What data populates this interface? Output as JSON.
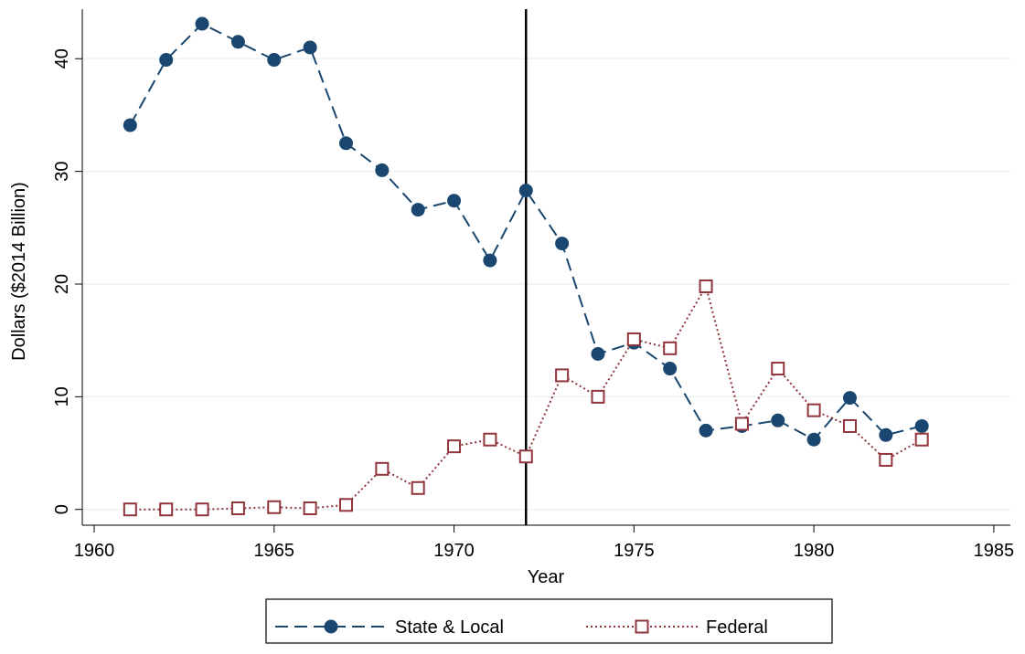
{
  "chart_data": {
    "type": "line",
    "x": [
      1961,
      1962,
      1963,
      1964,
      1965,
      1966,
      1967,
      1968,
      1969,
      1970,
      1971,
      1972,
      1973,
      1974,
      1975,
      1976,
      1977,
      1978,
      1979,
      1980,
      1981,
      1982,
      1983
    ],
    "series": [
      {
        "name": "State & Local",
        "color": "#1a476f",
        "marker": "circle",
        "dash": "dashed",
        "values": [
          34.1,
          39.9,
          43.1,
          41.5,
          39.9,
          41.0,
          32.5,
          30.1,
          26.6,
          27.4,
          22.1,
          28.3,
          23.6,
          13.8,
          14.8,
          12.5,
          7.0,
          7.4,
          7.9,
          6.2,
          9.9,
          6.6,
          7.4
        ]
      },
      {
        "name": "Federal",
        "color": "#90353b",
        "marker": "square",
        "dash": "dotted",
        "values": [
          0,
          0,
          0,
          0.1,
          0.2,
          0.1,
          0.4,
          3.6,
          1.9,
          5.6,
          6.2,
          4.7,
          11.9,
          10.0,
          15.1,
          14.3,
          19.8,
          7.6,
          12.5,
          8.8,
          7.4,
          4.4,
          6.2
        ]
      }
    ],
    "x_label": "Year",
    "y_label": "Dollars ($2014 Billion)",
    "xlim": [
      1959.67,
      1985.46
    ],
    "xticks": [
      1960,
      1965,
      1970,
      1975,
      1980,
      1985
    ],
    "ylim": [
      -1.4,
      44.4
    ],
    "yticks": [
      0,
      10,
      20,
      30,
      40
    ],
    "vline": 1972,
    "grid": true,
    "legend": "bottom"
  }
}
